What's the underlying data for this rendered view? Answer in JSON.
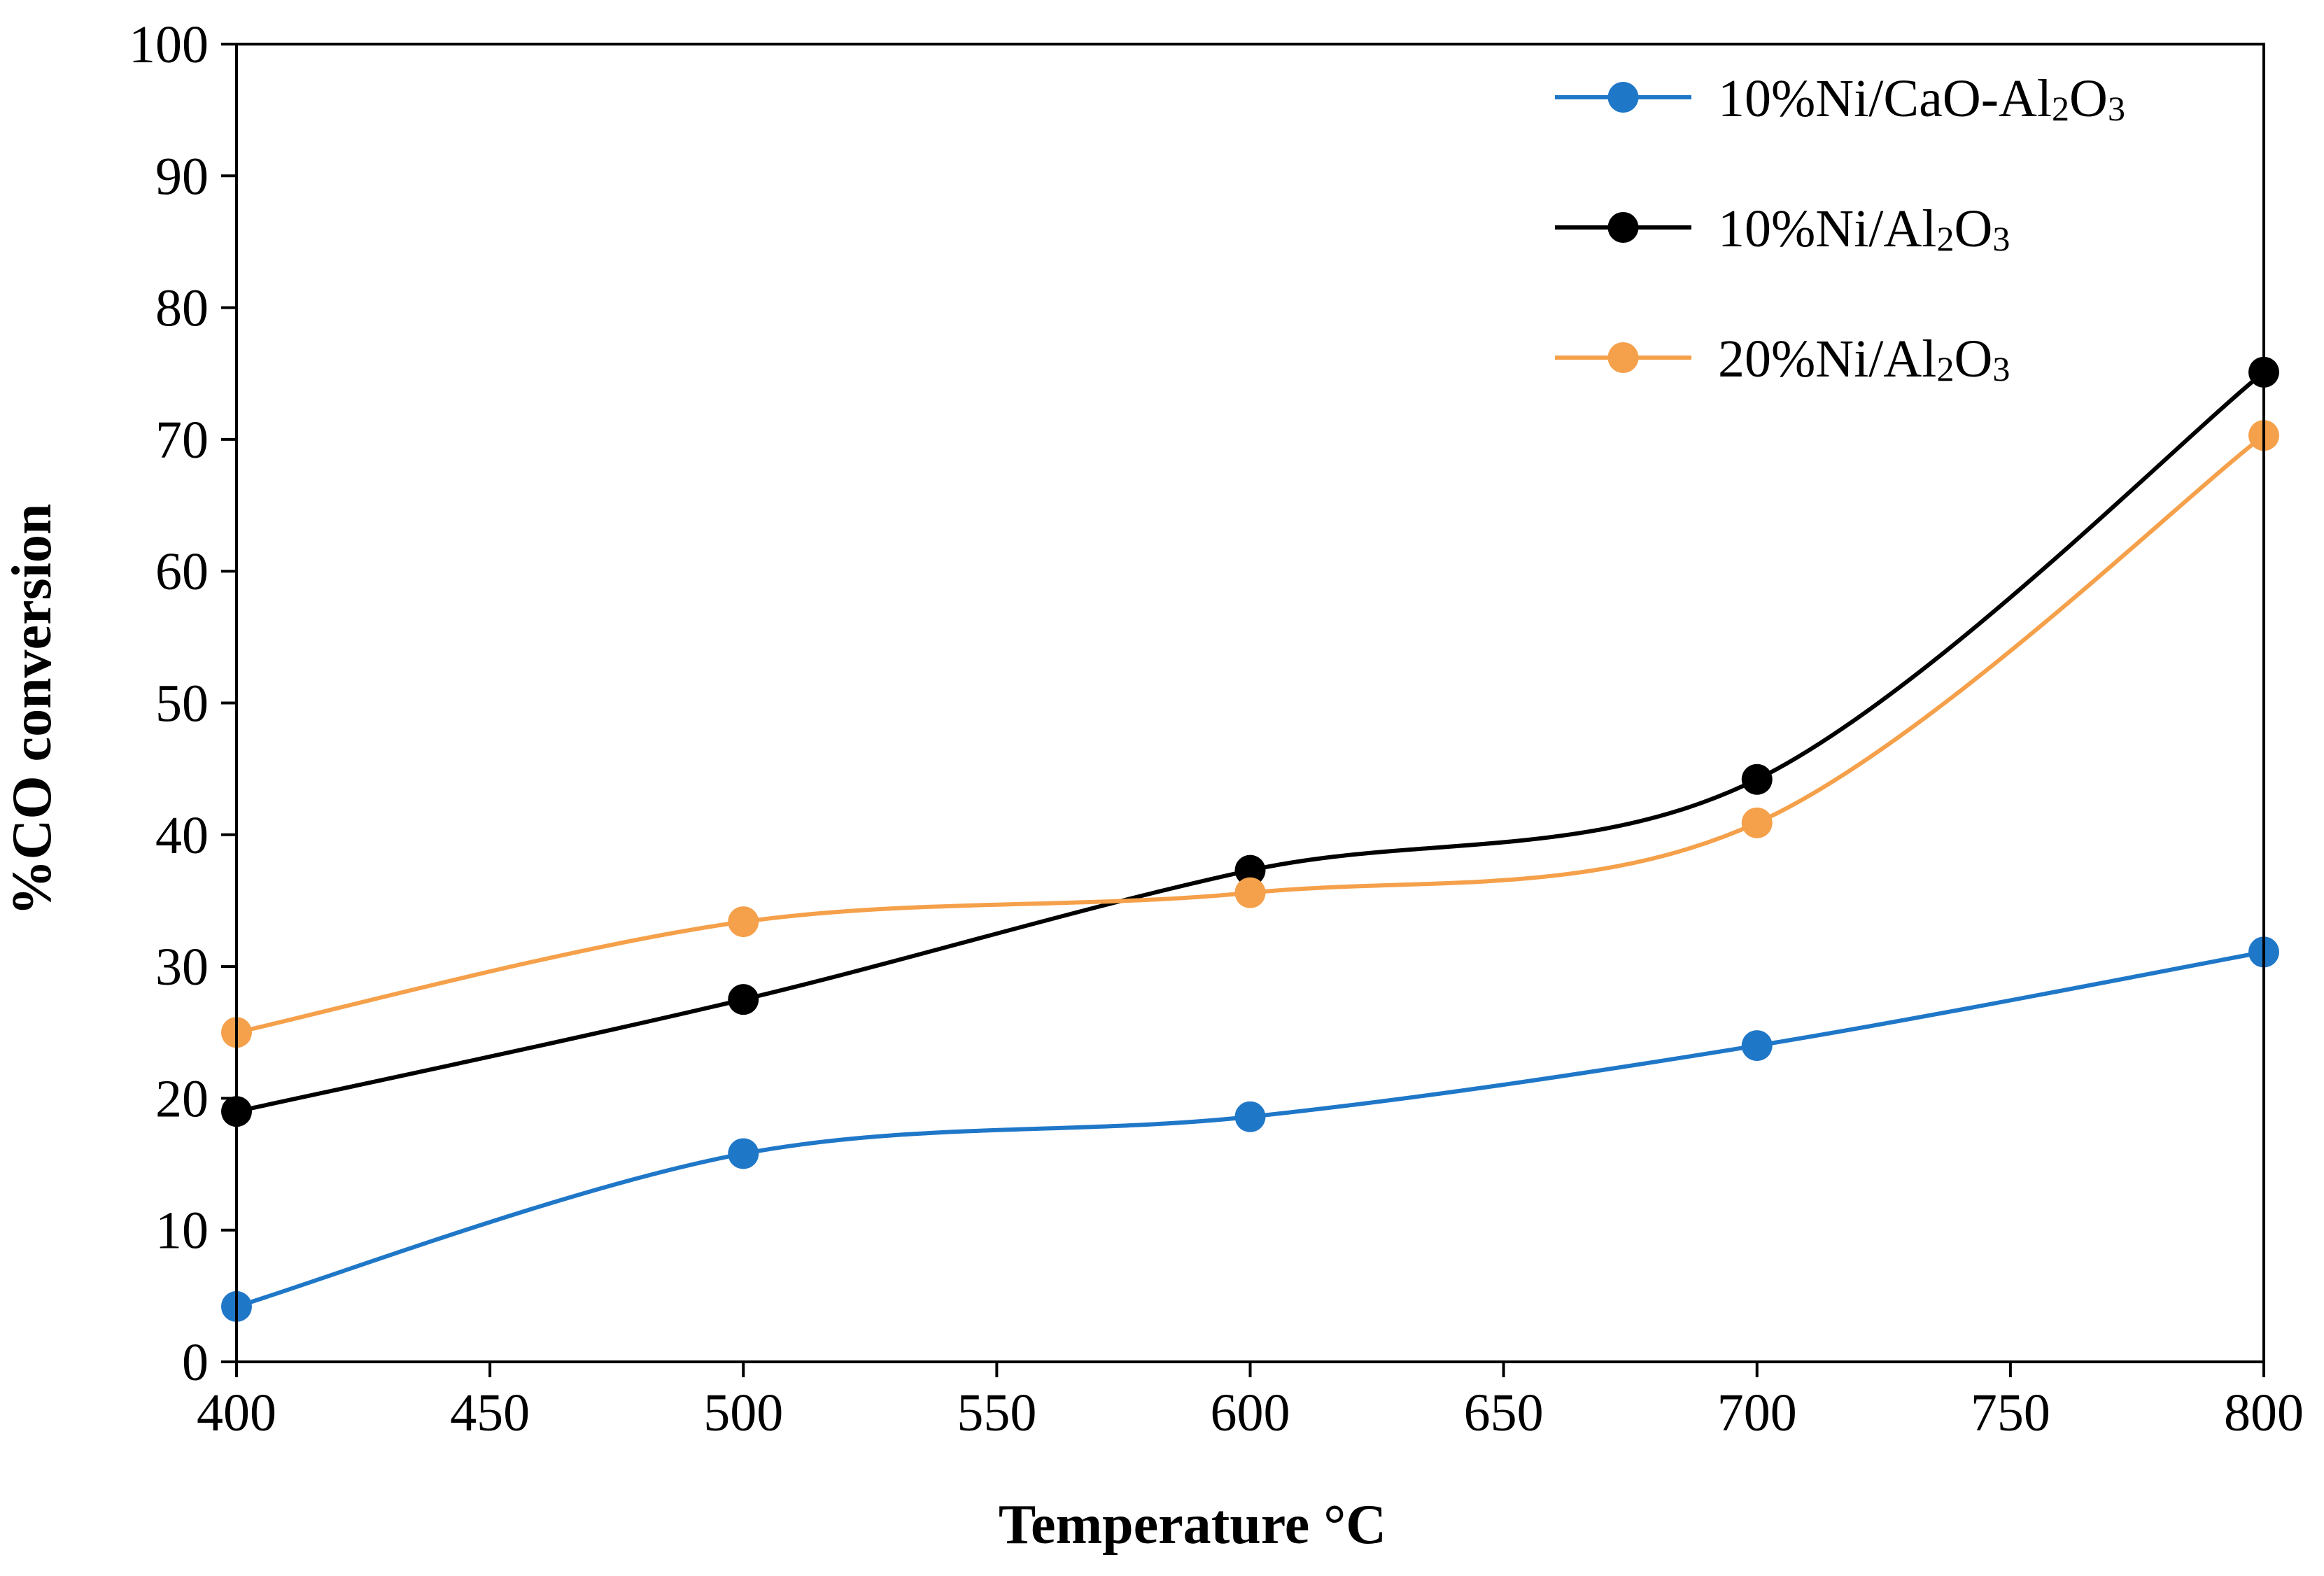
{
  "chart_data": {
    "type": "line",
    "title": "",
    "xlabel": "Temperature °C",
    "ylabel": "%CO conversion",
    "xlim": [
      400,
      800
    ],
    "ylim": [
      0,
      100
    ],
    "x_ticks": [
      400,
      450,
      500,
      550,
      600,
      650,
      700,
      750,
      800
    ],
    "y_ticks": [
      0,
      10,
      20,
      30,
      40,
      50,
      60,
      70,
      80,
      90,
      100
    ],
    "grid": false,
    "legend_position": "top-right",
    "smooth": true,
    "x": [
      400,
      500,
      600,
      700,
      800
    ],
    "series": [
      {
        "name": "10%Ni/CaO-Al₂O₃",
        "name_parts": [
          "10%Ni/CaO-Al",
          "2",
          "O",
          "3"
        ],
        "color": "#1f77c8",
        "values": [
          4.2,
          15.8,
          18.6,
          24.0,
          31.1
        ]
      },
      {
        "name": "10%Ni/Al₂O₃",
        "name_parts": [
          "10%Ni/Al",
          "2",
          "O",
          "3"
        ],
        "color": "#000000",
        "values": [
          19.0,
          27.5,
          37.3,
          44.2,
          75.1
        ]
      },
      {
        "name": "20%Ni/Al₂O₃",
        "name_parts": [
          "20%Ni/Al",
          "2",
          "O",
          "3"
        ],
        "color": "#f5a04a",
        "values": [
          25.0,
          33.4,
          35.6,
          40.9,
          70.3
        ]
      }
    ]
  }
}
